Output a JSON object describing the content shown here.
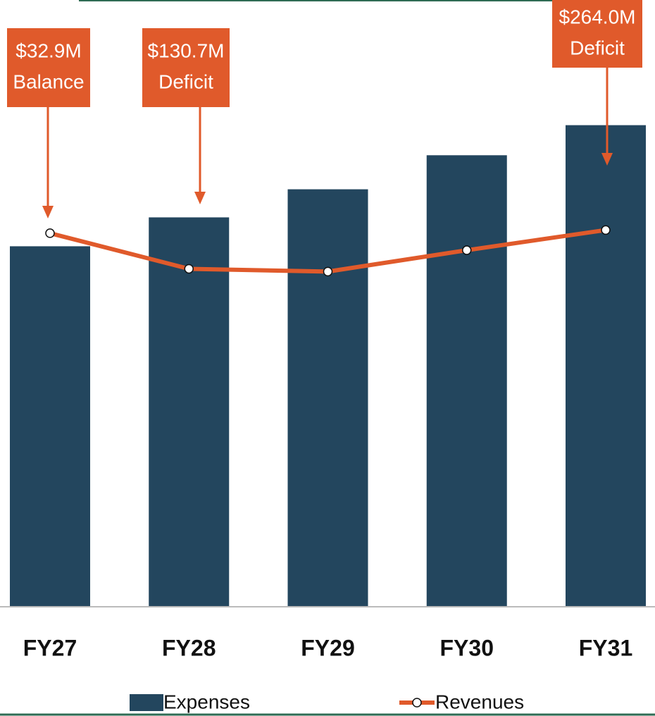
{
  "chart_data": {
    "type": "bar-line",
    "categories": [
      "FY27",
      "FY28",
      "FY29",
      "FY30",
      "FY31"
    ],
    "series": [
      {
        "name": "Expenses",
        "type": "bar",
        "color": "#23465e",
        "values": [
          911,
          984,
          1055,
          1141,
          1217
        ]
      },
      {
        "name": "Revenues",
        "type": "line",
        "color": "#e05a2b",
        "values": [
          944,
          854,
          847,
          901,
          952
        ]
      }
    ],
    "ylim": [
      0,
      1300
    ],
    "annotations": [
      {
        "lines": [
          "$32.9M",
          "Balance"
        ]
      },
      {
        "lines": [
          "$130.7M",
          "Deficit"
        ]
      },
      {
        "lines": [
          "$264.0M",
          "Deficit"
        ]
      }
    ]
  }
}
